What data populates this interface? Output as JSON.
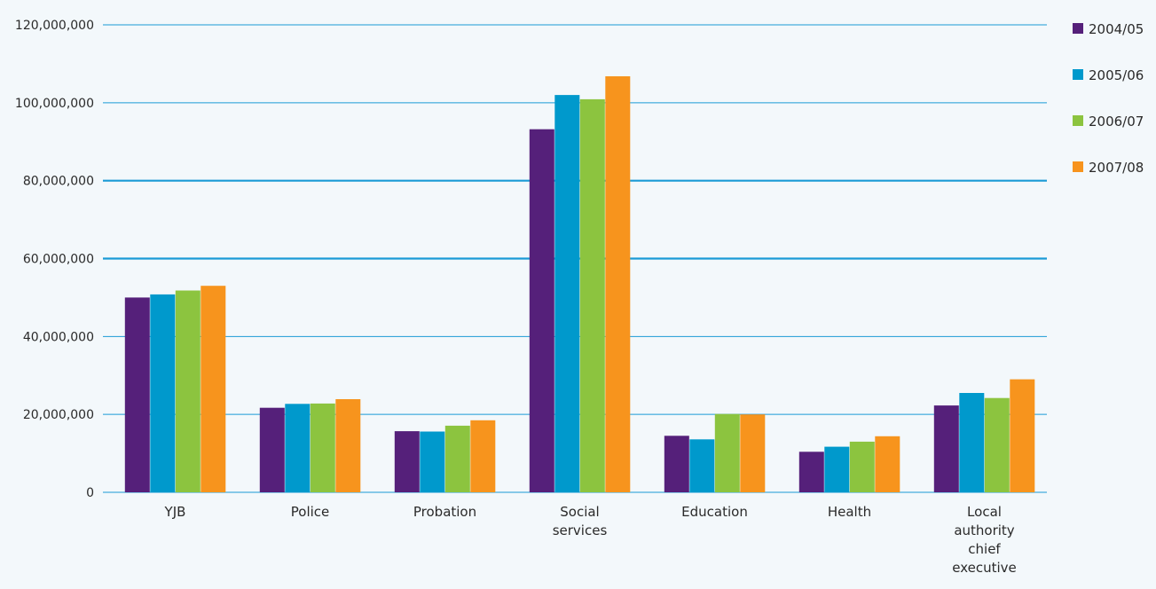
{
  "chart_data": {
    "type": "bar",
    "title": "",
    "xlabel": "",
    "ylabel": "",
    "ylim": [
      0,
      120000000
    ],
    "grid": true,
    "legend_position": "right",
    "y_ticks": [
      "0",
      "20,000,000",
      "40,000,000",
      "60,000,000",
      "80,000,000",
      "100,000,000",
      "120,000,000"
    ],
    "categories": [
      [
        "YJB"
      ],
      [
        "Police"
      ],
      [
        "Probation"
      ],
      [
        "Social",
        "services"
      ],
      [
        "Education"
      ],
      [
        "Health"
      ],
      [
        "Local",
        "authority",
        "chief",
        "executive"
      ]
    ],
    "series": [
      {
        "name": "2004/05",
        "color": "#55207a",
        "values": [
          50000000,
          21700000,
          15700000,
          93200000,
          14500000,
          10400000,
          22300000
        ]
      },
      {
        "name": "2005/06",
        "color": "#0099cc",
        "values": [
          50800000,
          22700000,
          15600000,
          102000000,
          13600000,
          11700000,
          25500000
        ]
      },
      {
        "name": "2006/07",
        "color": "#8cc43f",
        "values": [
          51800000,
          22800000,
          17100000,
          100900000,
          20100000,
          13000000,
          24200000
        ]
      },
      {
        "name": "2007/08",
        "color": "#f7941d",
        "values": [
          53000000,
          23900000,
          18500000,
          106800000,
          20000000,
          14400000,
          29000000
        ]
      }
    ]
  }
}
